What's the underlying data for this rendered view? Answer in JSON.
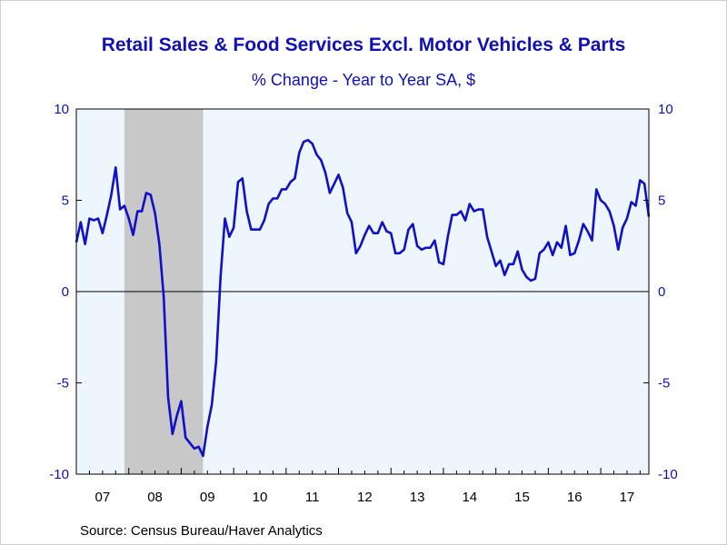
{
  "title": "Retail Sales & Food Services Excl. Motor Vehicles & Parts",
  "subtitle": "% Change - Year to Year     SA, $",
  "source": "Source:  Census Bureau/Haver Analytics",
  "colors": {
    "line": "#1010c8",
    "plot_bg": "#eef6fd",
    "recession": "#c8c8c8",
    "text": "#1010b8",
    "axis": "#000000"
  },
  "chart_data": {
    "type": "line",
    "title": "Retail Sales & Food Services Excl. Motor Vehicles & Parts",
    "subtitle": "% Change - Year to Year     SA, $",
    "ylim": [
      -10,
      10
    ],
    "yticks": [
      -10,
      -5,
      0,
      5,
      10
    ],
    "xlim": [
      2007.0,
      2017.917
    ],
    "xtick_labels": [
      "07",
      "08",
      "09",
      "10",
      "11",
      "12",
      "13",
      "14",
      "15",
      "16",
      "17"
    ],
    "zero_line": true,
    "recession": {
      "start": 2007.917,
      "end": 2009.417
    },
    "series": [
      {
        "x_start": 2007.0,
        "step_months": 1,
        "values": [
          2.7,
          3.8,
          2.6,
          4.0,
          3.9,
          4.0,
          3.2,
          4.2,
          5.3,
          6.8,
          4.5,
          4.7,
          4.0,
          3.1,
          4.4,
          4.4,
          5.4,
          5.3,
          4.3,
          2.6,
          -0.3,
          -5.8,
          -7.8,
          -6.8,
          -6.0,
          -8.0,
          -8.3,
          -8.6,
          -8.5,
          -9.0,
          -7.4,
          -6.2,
          -3.8,
          0.8,
          4.0,
          3.0,
          3.5,
          6.0,
          6.2,
          4.4,
          3.4,
          3.4,
          3.4,
          3.9,
          4.8,
          5.1,
          5.1,
          5.6,
          5.6,
          6.0,
          6.2,
          7.6,
          8.2,
          8.3,
          8.1,
          7.5,
          7.2,
          6.5,
          5.4,
          5.9,
          6.4,
          5.7,
          4.3,
          3.8,
          2.1,
          2.5,
          3.1,
          3.6,
          3.2,
          3.2,
          3.8,
          3.3,
          3.2,
          2.1,
          2.1,
          2.3,
          3.4,
          3.7,
          2.5,
          2.3,
          2.4,
          2.4,
          2.8,
          1.6,
          1.5,
          3.0,
          4.2,
          4.2,
          4.4,
          3.9,
          4.8,
          4.4,
          4.5,
          4.5,
          3.0,
          2.2,
          1.4,
          1.7,
          0.9,
          1.5,
          1.5,
          2.2,
          1.2,
          0.8,
          0.6,
          0.7,
          2.1,
          2.3,
          2.7,
          2.0,
          2.7,
          2.4,
          3.6,
          2.0,
          2.1,
          2.8,
          3.7,
          3.3,
          2.8,
          5.6,
          5.0,
          4.8,
          4.4,
          3.6,
          2.3,
          3.5,
          4.0,
          4.9,
          4.7,
          6.1,
          5.9,
          4.1
        ]
      }
    ]
  }
}
